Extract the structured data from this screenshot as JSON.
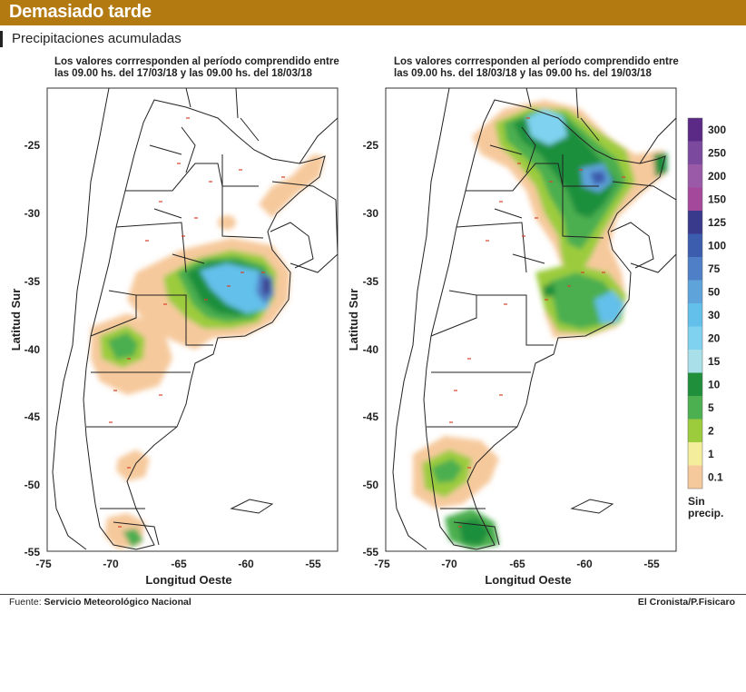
{
  "header": {
    "title": "Demasiado tarde"
  },
  "subtitle": "Precipitaciones acumuladas",
  "panels": [
    {
      "caption_line1": "Los valores corrresponden al período comprendido entre",
      "caption_line2": "las 09.00 hs. del 17/03/18 y las 09.00 hs. del 18/03/18"
    },
    {
      "caption_line1": "Los valores corrresponden al período comprendido entre",
      "caption_line2": "las 09.00 hs. del 18/03/18 y las 09.00 hs. del 19/03/18"
    }
  ],
  "axes": {
    "ylabel": "Latitud Sur",
    "xlabel": "Longitud Oeste",
    "y_ticks": [
      "-25",
      "-30",
      "-35",
      "-40",
      "-45",
      "-50",
      "-55"
    ],
    "x_ticks": [
      "-75",
      "-70",
      "-65",
      "-60",
      "-55"
    ]
  },
  "legend": {
    "levels": [
      {
        "label": "300",
        "color": "#5b2a86"
      },
      {
        "label": "250",
        "color": "#7b4a9e"
      },
      {
        "label": "200",
        "color": "#9b5aa8"
      },
      {
        "label": "150",
        "color": "#a4489b"
      },
      {
        "label": "125",
        "color": "#3a3a8c"
      },
      {
        "label": "100",
        "color": "#3c5cae"
      },
      {
        "label": "75",
        "color": "#4f7fc6"
      },
      {
        "label": "50",
        "color": "#5fa3db"
      },
      {
        "label": "30",
        "color": "#63c0ea"
      },
      {
        "label": "20",
        "color": "#7fd3f0"
      },
      {
        "label": "15",
        "color": "#a9dfe8"
      },
      {
        "label": "10",
        "color": "#1f8f3c"
      },
      {
        "label": "5",
        "color": "#4caf50"
      },
      {
        "label": "2",
        "color": "#9ccc3c"
      },
      {
        "label": "1",
        "color": "#f4ed9b"
      },
      {
        "label": "0.1",
        "color": "#f6c99c"
      }
    ],
    "none_label_1": "Sin",
    "none_label_2": "precip."
  },
  "footer": {
    "source_prefix": "Fuente: ",
    "source": "Servicio Meteorológico Nacional",
    "credit": "El Cronista/P.Fisicaro"
  },
  "colors": {
    "header_bar": "#b37a12",
    "no_precip": "#f6c99c"
  }
}
